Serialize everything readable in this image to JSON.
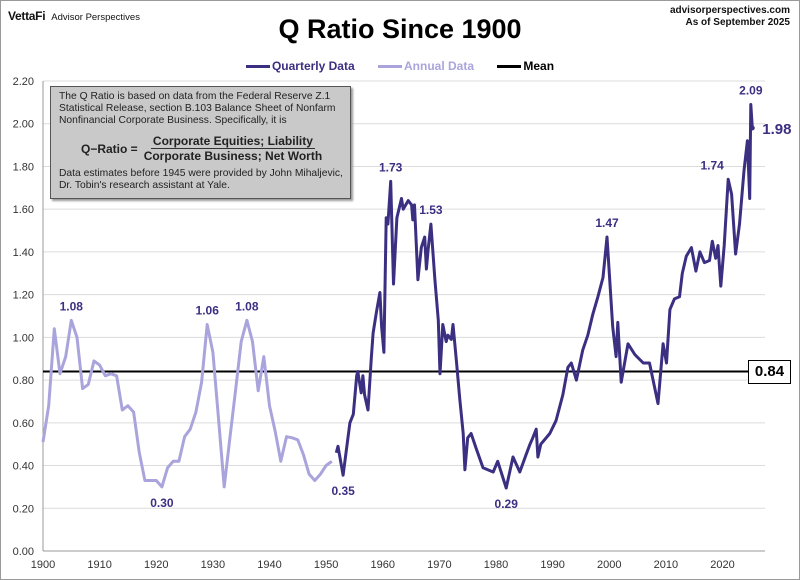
{
  "header": {
    "brand": "VettaFi",
    "brand_sub": "Advisor Perspectives",
    "source_url": "advisorperspectives.com",
    "as_of": "As of September 2025"
  },
  "note": {
    "text": "The Q Ratio is based on data from the Federal Reserve Z.1 Statistical Release, section B.103 Balance Sheet of Nonfarm Nonfinancial Corporate Business. Specifically, it is",
    "formula_label": "Q−Ratio =",
    "numerator": "Corporate Equities; Liability",
    "denominator": "Corporate Business; Net Worth",
    "footnote": "Data estimates before 1945 were provided by John Mihaljevic, Dr. Tobin's research assistant at Yale."
  },
  "chart_data": {
    "type": "line",
    "title": "Q Ratio Since 1900",
    "xlabel": "",
    "ylabel": "",
    "xlim": [
      1900,
      2027.5
    ],
    "ylim": [
      0,
      2.2
    ],
    "x_ticks": [
      1900,
      1910,
      1920,
      1930,
      1940,
      1950,
      1960,
      1970,
      1980,
      1990,
      2000,
      2010,
      2020
    ],
    "y_ticks": [
      "0.00",
      "0.20",
      "0.40",
      "0.60",
      "0.80",
      "1.00",
      "1.20",
      "1.40",
      "1.60",
      "1.80",
      "2.00",
      "2.20"
    ],
    "grid": "horizontal",
    "legend": "top-center",
    "colors": {
      "quarterly": "#3b2f82",
      "annual": "#aaa4dc",
      "mean": "#000000"
    },
    "series": [
      {
        "name": "Quarterly Data",
        "color": "#3b2f82",
        "x": [
          1951.8,
          1952.1,
          1953.0,
          1954.2,
          1954.8,
          1955.4,
          1955.6,
          1956.2,
          1956.5,
          1956.8,
          1957.4,
          1958.0,
          1958.3,
          1958.9,
          1959.5,
          1959.8,
          1960.2,
          1960.6,
          1960.9,
          1961.4,
          1961.9,
          1962.5,
          1963.3,
          1963.6,
          1964.5,
          1965.1,
          1965.3,
          1965.6,
          1966.2,
          1966.8,
          1967.4,
          1967.7,
          1968.0,
          1968.5,
          1969.2,
          1969.8,
          1970.1,
          1970.6,
          1971.2,
          1971.5,
          1972.1,
          1972.4,
          1973.0,
          1973.6,
          1974.2,
          1974.5,
          1975.0,
          1975.6,
          1976.5,
          1977.7,
          1979.5,
          1980.3,
          1981.8,
          1983.0,
          1984.2,
          1985.3,
          1986.0,
          1986.5,
          1987.1,
          1987.4,
          1987.9,
          1989.5,
          1990.6,
          1991.8,
          1992.7,
          1993.3,
          1994.2,
          1995.3,
          1996.2,
          1997.1,
          1998.0,
          1998.9,
          1999.6,
          2000.6,
          2001.2,
          2001.5,
          2002.1,
          2003.3,
          2004.5,
          2006.0,
          2007.1,
          2008.6,
          2009.5,
          2010.1,
          2010.7,
          2011.5,
          2012.4,
          2012.9,
          2013.6,
          2014.5,
          2015.3,
          2016.0,
          2016.8,
          2017.7,
          2018.2,
          2018.8,
          2019.2,
          2019.7,
          2020.3,
          2021.0,
          2021.6,
          2022.3,
          2023.0,
          2023.8,
          2024.4,
          2024.8,
          2025.0,
          2025.25
        ],
        "values": [
          0.46,
          0.49,
          0.355,
          0.6,
          0.64,
          0.82,
          0.84,
          0.74,
          0.82,
          0.73,
          0.66,
          0.91,
          1.02,
          1.12,
          1.21,
          1.05,
          0.93,
          1.56,
          1.53,
          1.73,
          1.25,
          1.56,
          1.65,
          1.6,
          1.64,
          1.62,
          1.55,
          1.62,
          1.27,
          1.42,
          1.47,
          1.32,
          1.41,
          1.53,
          1.27,
          1.08,
          0.83,
          1.06,
          0.98,
          1.01,
          0.99,
          1.06,
          0.89,
          0.71,
          0.55,
          0.38,
          0.53,
          0.55,
          0.48,
          0.39,
          0.37,
          0.42,
          0.295,
          0.44,
          0.37,
          0.45,
          0.5,
          0.53,
          0.57,
          0.44,
          0.5,
          0.55,
          0.61,
          0.73,
          0.86,
          0.88,
          0.8,
          0.94,
          1.01,
          1.11,
          1.19,
          1.28,
          1.47,
          1.05,
          0.91,
          1.07,
          0.79,
          0.97,
          0.92,
          0.88,
          0.88,
          0.69,
          0.97,
          0.88,
          1.13,
          1.18,
          1.19,
          1.3,
          1.38,
          1.42,
          1.31,
          1.4,
          1.35,
          1.36,
          1.45,
          1.37,
          1.43,
          1.24,
          1.43,
          1.74,
          1.67,
          1.39,
          1.53,
          1.78,
          1.92,
          1.65,
          2.09,
          1.98
        ]
      },
      {
        "name": "Annual Data",
        "color": "#aaa4dc",
        "x": [
          1900,
          1901,
          1902,
          1903,
          1904,
          1905,
          1906,
          1907,
          1908,
          1909,
          1910,
          1911,
          1912,
          1913,
          1914,
          1915,
          1916,
          1917,
          1918,
          1919,
          1920,
          1921,
          1922,
          1923,
          1924,
          1925,
          1926,
          1927,
          1928,
          1929,
          1930,
          1931,
          1932,
          1933,
          1934,
          1935,
          1936,
          1937,
          1938,
          1939,
          1940,
          1941,
          1942,
          1943,
          1944,
          1945,
          1946,
          1947,
          1948,
          1949,
          1950,
          1951
        ],
        "values": [
          0.51,
          0.68,
          1.04,
          0.83,
          0.91,
          1.08,
          1.0,
          0.76,
          0.78,
          0.89,
          0.87,
          0.82,
          0.83,
          0.82,
          0.66,
          0.68,
          0.65,
          0.46,
          0.33,
          0.33,
          0.33,
          0.3,
          0.39,
          0.42,
          0.42,
          0.535,
          0.57,
          0.65,
          0.79,
          1.06,
          0.93,
          0.62,
          0.3,
          0.53,
          0.75,
          0.98,
          1.08,
          0.98,
          0.75,
          0.91,
          0.68,
          0.56,
          0.42,
          0.535,
          0.53,
          0.52,
          0.45,
          0.36,
          0.33,
          0.36,
          0.4,
          0.42
        ]
      },
      {
        "name": "Mean",
        "color": "#000000",
        "value": 0.84
      }
    ],
    "mean_label": "0.84",
    "annotations": [
      {
        "text": "1.08",
        "x": 1905,
        "y": 1.08,
        "position": "above"
      },
      {
        "text": "1.06",
        "x": 1929,
        "y": 1.06,
        "position": "above"
      },
      {
        "text": "1.08",
        "x": 1936,
        "y": 1.08,
        "position": "above"
      },
      {
        "text": "0.30",
        "x": 1921,
        "y": 0.3,
        "position": "below"
      },
      {
        "text": "0.35",
        "x": 1953,
        "y": 0.355,
        "position": "below"
      },
      {
        "text": "1.73",
        "x": 1961.4,
        "y": 1.73,
        "position": "above"
      },
      {
        "text": "1.53",
        "x": 1968.5,
        "y": 1.53,
        "position": "above"
      },
      {
        "text": "0.29",
        "x": 1981.8,
        "y": 0.295,
        "position": "below"
      },
      {
        "text": "1.47",
        "x": 1999.6,
        "y": 1.47,
        "position": "above"
      },
      {
        "text": "1.74",
        "x": 2021.0,
        "y": 1.74,
        "position": "above-left"
      },
      {
        "text": "2.09",
        "x": 2025.0,
        "y": 2.09,
        "position": "above"
      },
      {
        "text": "1.98",
        "x": 2025.25,
        "y": 1.98,
        "position": "right"
      }
    ]
  }
}
